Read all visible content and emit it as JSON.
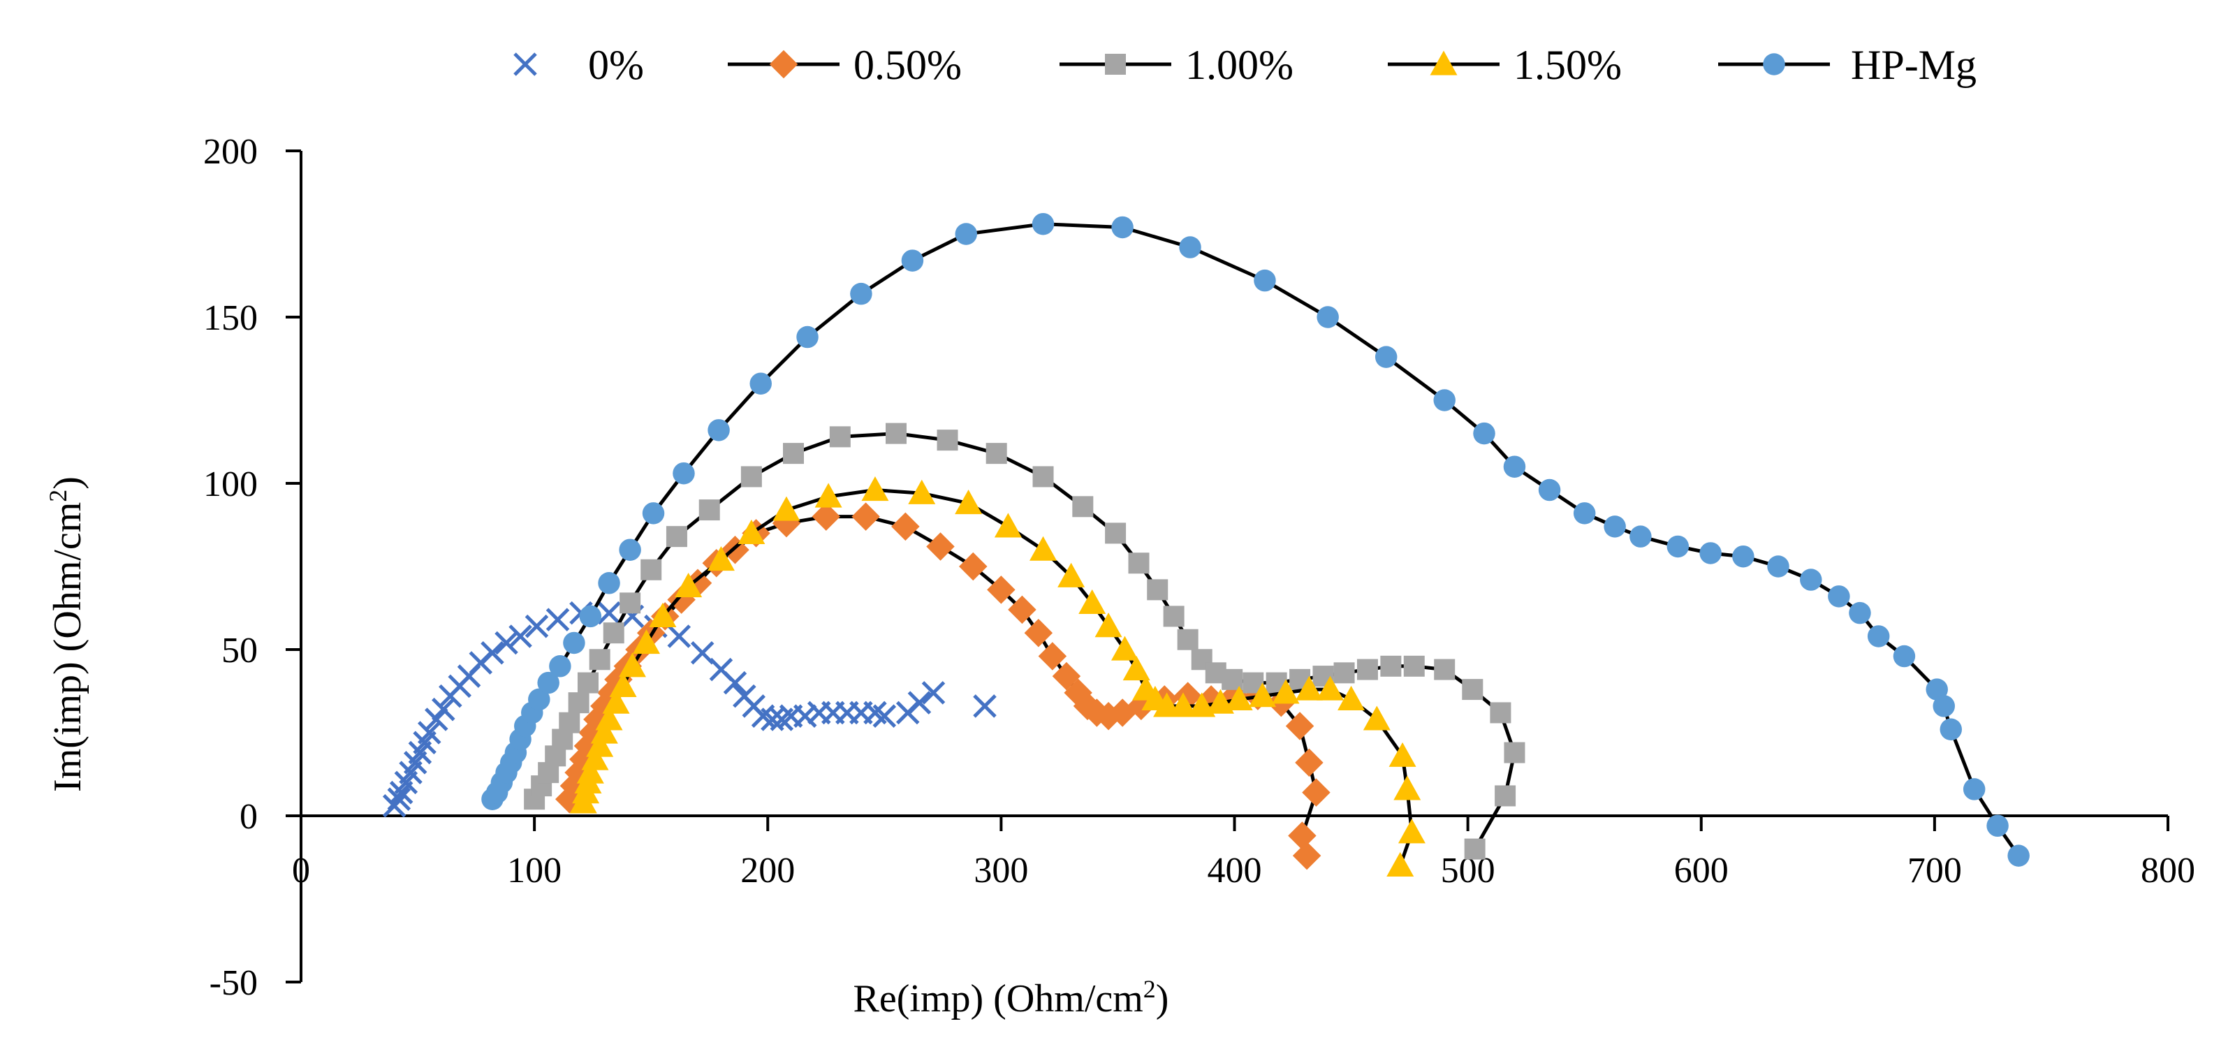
{
  "chart_data": {
    "type": "scatter",
    "title": "",
    "xlabel": "Re(imp) (Ohm/cm",
    "xlabel_sup": "2",
    "xlabel_tail": ")",
    "ylabel": "Im(imp) (Ohm/cm",
    "ylabel_sup": "2",
    "ylabel_tail": ")",
    "xlim": [
      0,
      800
    ],
    "ylim": [
      -50,
      200
    ],
    "x_ticks": [
      0,
      100,
      200,
      300,
      400,
      500,
      600,
      700,
      800
    ],
    "y_ticks": [
      -50,
      0,
      50,
      100,
      150,
      200
    ],
    "legend_position": "top",
    "grid": false,
    "series": [
      {
        "name": "0%",
        "color": "#4472C4",
        "marker": "x",
        "line": false,
        "points": [
          [
            40,
            3
          ],
          [
            42,
            5
          ],
          [
            43,
            7
          ],
          [
            45,
            10
          ],
          [
            47,
            13
          ],
          [
            49,
            16
          ],
          [
            51,
            19
          ],
          [
            53,
            22
          ],
          [
            55,
            25
          ],
          [
            58,
            29
          ],
          [
            61,
            32
          ],
          [
            64,
            36
          ],
          [
            68,
            39
          ],
          [
            72,
            42
          ],
          [
            77,
            46
          ],
          [
            82,
            49
          ],
          [
            88,
            52
          ],
          [
            94,
            54
          ],
          [
            101,
            57
          ],
          [
            110,
            59
          ],
          [
            120,
            61
          ],
          [
            132,
            61
          ],
          [
            142,
            60
          ],
          [
            152,
            57
          ],
          [
            162,
            54
          ],
          [
            172,
            49
          ],
          [
            180,
            44
          ],
          [
            186,
            40
          ],
          [
            190,
            36
          ],
          [
            194,
            33
          ],
          [
            198,
            30
          ],
          [
            202,
            29
          ],
          [
            206,
            29
          ],
          [
            210,
            30
          ],
          [
            216,
            30
          ],
          [
            222,
            31
          ],
          [
            228,
            31
          ],
          [
            234,
            31
          ],
          [
            240,
            31
          ],
          [
            246,
            31
          ],
          [
            250,
            30
          ],
          [
            260,
            31
          ],
          [
            265,
            34
          ],
          [
            271,
            37
          ],
          [
            293,
            33
          ]
        ]
      },
      {
        "name": "0.50%",
        "color": "#ED7D31",
        "marker": "diamond",
        "line": true,
        "points": [
          [
            115,
            5
          ],
          [
            117,
            9
          ],
          [
            119,
            13
          ],
          [
            121,
            17
          ],
          [
            123,
            21
          ],
          [
            125,
            25
          ],
          [
            127,
            29
          ],
          [
            130,
            33
          ],
          [
            133,
            37
          ],
          [
            136,
            41
          ],
          [
            140,
            45
          ],
          [
            145,
            50
          ],
          [
            150,
            55
          ],
          [
            156,
            60
          ],
          [
            163,
            65
          ],
          [
            170,
            70
          ],
          [
            178,
            76
          ],
          [
            186,
            80
          ],
          [
            195,
            85
          ],
          [
            208,
            88
          ],
          [
            225,
            90
          ],
          [
            242,
            90
          ],
          [
            259,
            87
          ],
          [
            274,
            81
          ],
          [
            288,
            75
          ],
          [
            300,
            68
          ],
          [
            309,
            62
          ],
          [
            316,
            55
          ],
          [
            322,
            48
          ],
          [
            328,
            42
          ],
          [
            333,
            37
          ],
          [
            337,
            33
          ],
          [
            341,
            31
          ],
          [
            346,
            30
          ],
          [
            352,
            31
          ],
          [
            360,
            33
          ],
          [
            370,
            35
          ],
          [
            380,
            36
          ],
          [
            390,
            35
          ],
          [
            400,
            36
          ],
          [
            410,
            36
          ],
          [
            420,
            34
          ],
          [
            428,
            27
          ],
          [
            432,
            16
          ],
          [
            435,
            7
          ],
          [
            429,
            -6
          ],
          [
            431,
            -12
          ]
        ]
      },
      {
        "name": "1.00%",
        "color": "#A5A5A5",
        "marker": "square",
        "line": true,
        "points": [
          [
            100,
            5
          ],
          [
            103,
            9
          ],
          [
            106,
            13
          ],
          [
            109,
            18
          ],
          [
            112,
            23
          ],
          [
            115,
            28
          ],
          [
            119,
            34
          ],
          [
            123,
            40
          ],
          [
            128,
            47
          ],
          [
            134,
            55
          ],
          [
            141,
            64
          ],
          [
            150,
            74
          ],
          [
            161,
            84
          ],
          [
            175,
            92
          ],
          [
            193,
            102
          ],
          [
            211,
            109
          ],
          [
            231,
            114
          ],
          [
            255,
            115
          ],
          [
            277,
            113
          ],
          [
            298,
            109
          ],
          [
            318,
            102
          ],
          [
            335,
            93
          ],
          [
            349,
            85
          ],
          [
            359,
            76
          ],
          [
            367,
            68
          ],
          [
            374,
            60
          ],
          [
            380,
            53
          ],
          [
            386,
            47
          ],
          [
            392,
            43
          ],
          [
            399,
            41
          ],
          [
            408,
            40
          ],
          [
            418,
            40
          ],
          [
            428,
            41
          ],
          [
            438,
            42
          ],
          [
            447,
            43
          ],
          [
            457,
            44
          ],
          [
            467,
            45
          ],
          [
            477,
            45
          ],
          [
            490,
            44
          ],
          [
            502,
            38
          ],
          [
            514,
            31
          ],
          [
            520,
            19
          ],
          [
            516,
            6
          ],
          [
            503,
            -10
          ]
        ]
      },
      {
        "name": "1.50%",
        "color": "#FFC000",
        "marker": "triangle",
        "line": true,
        "points": [
          [
            121,
            4
          ],
          [
            122,
            7
          ],
          [
            123,
            10
          ],
          [
            124,
            13
          ],
          [
            126,
            17
          ],
          [
            128,
            21
          ],
          [
            130,
            25
          ],
          [
            132,
            29
          ],
          [
            135,
            34
          ],
          [
            138,
            39
          ],
          [
            142,
            45
          ],
          [
            148,
            52
          ],
          [
            155,
            60
          ],
          [
            166,
            69
          ],
          [
            180,
            77
          ],
          [
            193,
            85
          ],
          [
            208,
            92
          ],
          [
            226,
            96
          ],
          [
            246,
            98
          ],
          [
            266,
            97
          ],
          [
            286,
            94
          ],
          [
            303,
            87
          ],
          [
            318,
            80
          ],
          [
            330,
            72
          ],
          [
            339,
            64
          ],
          [
            346,
            57
          ],
          [
            353,
            50
          ],
          [
            358,
            44
          ],
          [
            362,
            38
          ],
          [
            366,
            35
          ],
          [
            371,
            33
          ],
          [
            378,
            33
          ],
          [
            386,
            33
          ],
          [
            394,
            34
          ],
          [
            402,
            35
          ],
          [
            412,
            36
          ],
          [
            422,
            37
          ],
          [
            432,
            38
          ],
          [
            441,
            38
          ],
          [
            450,
            35
          ],
          [
            461,
            29
          ],
          [
            472,
            18
          ],
          [
            474,
            8
          ],
          [
            476,
            -5
          ],
          [
            471,
            -15
          ]
        ]
      },
      {
        "name": "HP-Mg",
        "color": "#5B9BD5",
        "marker": "circle",
        "line": true,
        "points": [
          [
            82,
            5
          ],
          [
            84,
            7
          ],
          [
            86,
            10
          ],
          [
            88,
            13
          ],
          [
            90,
            16
          ],
          [
            92,
            19
          ],
          [
            94,
            23
          ],
          [
            96,
            27
          ],
          [
            99,
            31
          ],
          [
            102,
            35
          ],
          [
            106,
            40
          ],
          [
            111,
            45
          ],
          [
            117,
            52
          ],
          [
            124,
            60
          ],
          [
            132,
            70
          ],
          [
            141,
            80
          ],
          [
            151,
            91
          ],
          [
            164,
            103
          ],
          [
            179,
            116
          ],
          [
            197,
            130
          ],
          [
            217,
            144
          ],
          [
            240,
            157
          ],
          [
            262,
            167
          ],
          [
            285,
            175
          ],
          [
            318,
            178
          ],
          [
            352,
            177
          ],
          [
            381,
            171
          ],
          [
            413,
            161
          ],
          [
            440,
            150
          ],
          [
            465,
            138
          ],
          [
            490,
            125
          ],
          [
            507,
            115
          ],
          [
            520,
            105
          ],
          [
            535,
            98
          ],
          [
            550,
            91
          ],
          [
            563,
            87
          ],
          [
            574,
            84
          ],
          [
            590,
            81
          ],
          [
            604,
            79
          ],
          [
            618,
            78
          ],
          [
            633,
            75
          ],
          [
            647,
            71
          ],
          [
            659,
            66
          ],
          [
            668,
            61
          ],
          [
            676,
            54
          ],
          [
            687,
            48
          ],
          [
            701,
            38
          ],
          [
            704,
            33
          ],
          [
            707,
            26
          ],
          [
            717,
            8
          ],
          [
            727,
            -3
          ],
          [
            736,
            -12
          ]
        ]
      }
    ]
  }
}
